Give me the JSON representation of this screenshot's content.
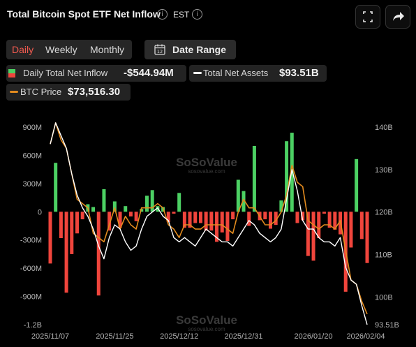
{
  "header": {
    "title": "Total Bitcoin Spot ETF Net Inflow",
    "timezone": "EST"
  },
  "tabs": [
    {
      "label": "Daily",
      "active": true
    },
    {
      "label": "Weekly",
      "active": false
    },
    {
      "label": "Monthly",
      "active": false
    }
  ],
  "date_range": {
    "label": "Date Range",
    "icon_text": "12"
  },
  "legend": {
    "inflow": {
      "label": "Daily Total Net Inflow",
      "value": "-$544.94M"
    },
    "assets": {
      "label": "Total Net Assets",
      "value": "$93.51B"
    },
    "btc": {
      "label": "BTC Price",
      "value": "$73,516.30"
    }
  },
  "watermark": {
    "name": "SoSoValue",
    "url": "sosovalue.com"
  },
  "colors": {
    "positive": "#4cd063",
    "negative": "#f0453c",
    "price_line": "#e38b1e",
    "assets_line": "#ffffff",
    "accent_tab": "#f05a4f"
  },
  "chart_data": {
    "type": "bar",
    "x_tick_labels": [
      "2025/11/07",
      "2025/11/25",
      "2025/12/12",
      "2025/12/31",
      "2026/01/20",
      "2026/02/04"
    ],
    "left_axis": {
      "ticks": [
        "900M",
        "600M",
        "300M",
        "0",
        "-300M",
        "-600M",
        "-900M",
        "-1.2B"
      ],
      "ylim": [
        -1200,
        900
      ],
      "unit": "M USD"
    },
    "right_axis": {
      "ticks": [
        "140B",
        "130B",
        "120B",
        "110B",
        "100B",
        "93.51B"
      ],
      "ylim": [
        93.51,
        140
      ]
    },
    "inflow_values": [
      -550,
      520,
      -280,
      -860,
      -450,
      -230,
      -80,
      80,
      50,
      -890,
      240,
      -200,
      110,
      -170,
      60,
      -50,
      -100,
      30,
      170,
      230,
      60,
      50,
      -110,
      -20,
      200,
      -170,
      -170,
      -120,
      -120,
      -200,
      -200,
      -320,
      -220,
      -310,
      -80,
      340,
      220,
      -150,
      700,
      -90,
      -80,
      -180,
      -140,
      120,
      750,
      840,
      -120,
      -90,
      -470,
      -520,
      -280,
      -20,
      -170,
      -190,
      -240,
      -850,
      -380,
      560,
      -290,
      -545
    ],
    "series": [
      {
        "name": "Total Net Assets",
        "values": [
          136,
          141,
          138,
          135,
          129,
          124,
          121,
          119,
          116,
          112,
          109,
          114,
          117,
          116,
          113,
          111,
          112,
          116,
          119,
          120,
          121,
          119,
          118,
          114,
          113,
          114,
          113,
          112,
          114,
          116,
          115,
          114,
          113,
          113,
          112,
          114,
          116,
          118,
          117,
          115,
          114,
          113,
          114,
          116,
          123,
          130,
          125,
          118,
          116,
          116,
          114,
          113,
          113,
          112,
          114,
          107,
          104,
          103,
          98,
          93.51
        ]
      },
      {
        "name": "BTC Price",
        "values": [
          136,
          141,
          137,
          135,
          129,
          123,
          122,
          121,
          115,
          114,
          113,
          117,
          121,
          116,
          119,
          117,
          116,
          121,
          121,
          121,
          122,
          121,
          117,
          116,
          114,
          117,
          117,
          116,
          116,
          117,
          117,
          117,
          117,
          116,
          115,
          120,
          123,
          121,
          121,
          119,
          117,
          117,
          118,
          120,
          124,
          131,
          127,
          126,
          118,
          117,
          116,
          117,
          117,
          116,
          118,
          111,
          104,
          103,
          99,
          96
        ]
      }
    ]
  }
}
